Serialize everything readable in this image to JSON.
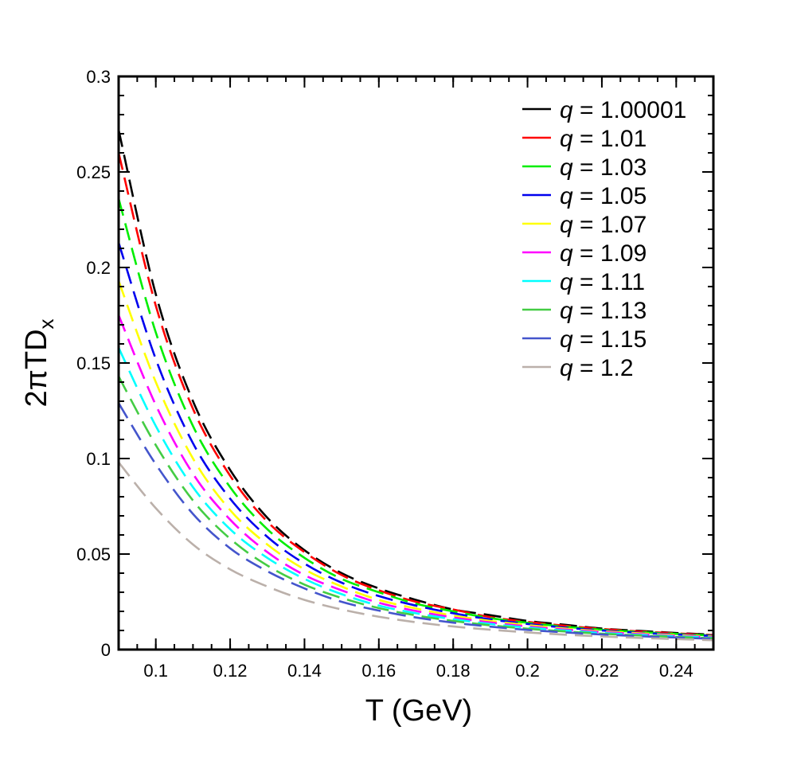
{
  "chart_data": {
    "type": "line",
    "title": "",
    "xlabel": "T (GeV)",
    "ylabel": {
      "main": "2πTD",
      "sub": "x"
    },
    "xlim": [
      0.09,
      0.25
    ],
    "ylim": [
      0,
      0.3
    ],
    "x_ticks": [
      0.1,
      0.12,
      0.14,
      0.16,
      0.18,
      0.2,
      0.22,
      0.24
    ],
    "x_tick_labels": [
      "0.1",
      "0.12",
      "0.14",
      "0.16",
      "0.18",
      "0.2",
      "0.22",
      "0.24"
    ],
    "y_ticks": [
      0,
      0.05,
      0.1,
      0.15,
      0.2,
      0.25,
      0.3
    ],
    "y_tick_labels": [
      "0",
      "0.05",
      "0.1",
      "0.15",
      "0.2",
      "0.25",
      "0.3"
    ],
    "legend_position": "top-right",
    "legend_symbol": "q",
    "legend_eq": " = ",
    "x": [
      0.09,
      0.1,
      0.11,
      0.12,
      0.13,
      0.14,
      0.15,
      0.16,
      0.17,
      0.18,
      0.19,
      0.2,
      0.21,
      0.22,
      0.23,
      0.24,
      0.25
    ],
    "series": [
      {
        "name": "1.00001",
        "color": "#000000",
        "values": [
          0.272,
          0.186,
          0.13,
          0.094,
          0.069,
          0.052,
          0.04,
          0.032,
          0.026,
          0.021,
          0.018,
          0.015,
          0.013,
          0.011,
          0.0098,
          0.0087,
          0.0078
        ]
      },
      {
        "name": "1.01",
        "color": "#ff0000",
        "values": [
          0.26,
          0.18,
          0.126,
          0.091,
          0.067,
          0.051,
          0.039,
          0.031,
          0.025,
          0.021,
          0.017,
          0.0145,
          0.0125,
          0.0108,
          0.0095,
          0.0085,
          0.0076
        ]
      },
      {
        "name": "1.03",
        "color": "#00ee00",
        "values": [
          0.236,
          0.166,
          0.117,
          0.085,
          0.063,
          0.048,
          0.037,
          0.03,
          0.024,
          0.02,
          0.0165,
          0.014,
          0.012,
          0.0104,
          0.0092,
          0.0082,
          0.0073
        ]
      },
      {
        "name": "1.05",
        "color": "#0000ee",
        "values": [
          0.213,
          0.152,
          0.108,
          0.079,
          0.059,
          0.045,
          0.035,
          0.028,
          0.023,
          0.019,
          0.0158,
          0.0134,
          0.0115,
          0.01,
          0.0088,
          0.0079,
          0.0071
        ]
      },
      {
        "name": "1.07",
        "color": "#ffff00",
        "values": [
          0.193,
          0.14,
          0.1,
          0.073,
          0.055,
          0.042,
          0.033,
          0.026,
          0.0215,
          0.0178,
          0.015,
          0.0128,
          0.011,
          0.0096,
          0.0085,
          0.0076,
          0.0068
        ]
      },
      {
        "name": "1.09",
        "color": "#ff00ff",
        "values": [
          0.175,
          0.128,
          0.092,
          0.068,
          0.051,
          0.039,
          0.031,
          0.0245,
          0.0202,
          0.0168,
          0.0142,
          0.0121,
          0.0105,
          0.0092,
          0.0081,
          0.0072,
          0.0065
        ]
      },
      {
        "name": "1.11",
        "color": "#00ffff",
        "values": [
          0.158,
          0.117,
          0.085,
          0.063,
          0.048,
          0.037,
          0.029,
          0.023,
          0.019,
          0.0159,
          0.0134,
          0.0115,
          0.01,
          0.0087,
          0.0077,
          0.0069,
          0.0062
        ]
      },
      {
        "name": "1.13",
        "color": "#44cc44",
        "values": [
          0.143,
          0.107,
          0.078,
          0.058,
          0.044,
          0.034,
          0.027,
          0.0217,
          0.0179,
          0.015,
          0.0127,
          0.0109,
          0.0095,
          0.0083,
          0.0074,
          0.0066,
          0.0059
        ]
      },
      {
        "name": "1.15",
        "color": "#4455cc",
        "values": [
          0.129,
          0.097,
          0.071,
          0.053,
          0.041,
          0.032,
          0.025,
          0.0204,
          0.0168,
          0.0141,
          0.012,
          0.0103,
          0.009,
          0.0079,
          0.007,
          0.0063,
          0.0056
        ]
      },
      {
        "name": "1.2",
        "color": "#bbb0aa",
        "values": [
          0.098,
          0.074,
          0.055,
          0.042,
          0.033,
          0.026,
          0.021,
          0.0172,
          0.0143,
          0.0121,
          0.0104,
          0.009,
          0.0078,
          0.0069,
          0.0061,
          0.0055,
          0.0049
        ]
      }
    ]
  }
}
